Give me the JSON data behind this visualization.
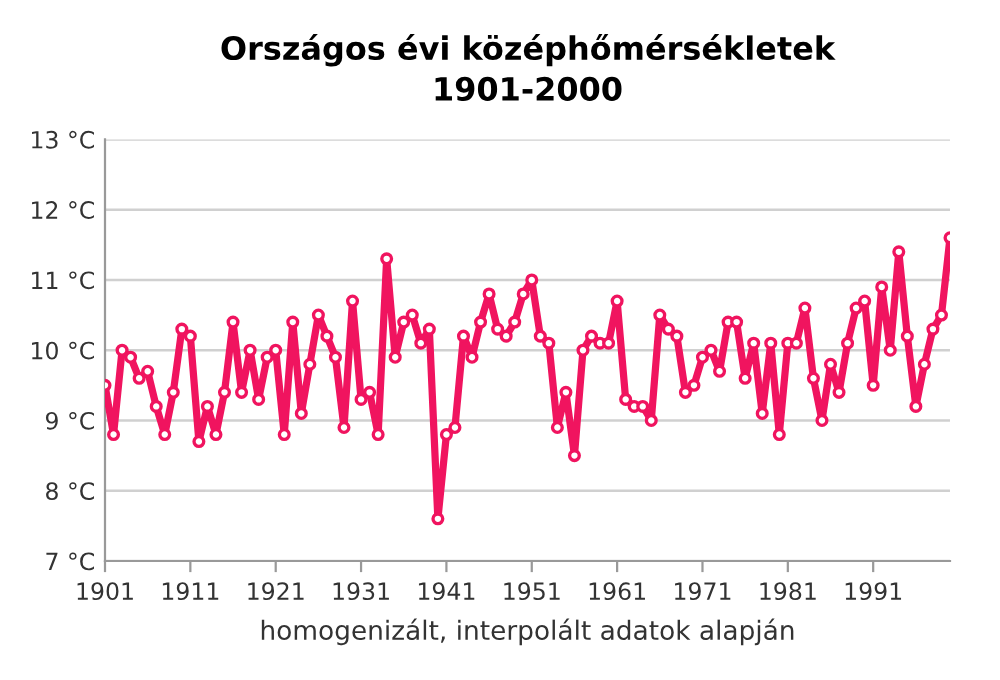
{
  "chart_data": {
    "type": "line",
    "title": "Országos évi középhőmérsékletek\n1901-2000",
    "xlabel": "homogenizált, interpolált adatok alapján",
    "x": [
      1901,
      1902,
      1903,
      1904,
      1905,
      1906,
      1907,
      1908,
      1909,
      1910,
      1911,
      1912,
      1913,
      1914,
      1915,
      1916,
      1917,
      1918,
      1919,
      1920,
      1921,
      1922,
      1923,
      1924,
      1925,
      1926,
      1927,
      1928,
      1929,
      1930,
      1931,
      1932,
      1933,
      1934,
      1935,
      1936,
      1937,
      1938,
      1939,
      1940,
      1941,
      1942,
      1943,
      1944,
      1945,
      1946,
      1947,
      1948,
      1949,
      1950,
      1951,
      1952,
      1953,
      1954,
      1955,
      1956,
      1957,
      1958,
      1959,
      1960,
      1961,
      1962,
      1963,
      1964,
      1965,
      1966,
      1967,
      1968,
      1969,
      1970,
      1971,
      1972,
      1973,
      1974,
      1975,
      1976,
      1977,
      1978,
      1979,
      1980,
      1981,
      1982,
      1983,
      1984,
      1985,
      1986,
      1987,
      1988,
      1989,
      1990,
      1991,
      1992,
      1993,
      1994,
      1995,
      1996,
      1997,
      1998,
      1999,
      2000
    ],
    "series": [
      {
        "color": "#f0145f",
        "values": [
          9.5,
          8.8,
          10.0,
          9.9,
          9.6,
          9.7,
          9.2,
          8.8,
          9.4,
          10.3,
          10.2,
          8.7,
          9.2,
          8.8,
          9.4,
          10.4,
          9.4,
          10.0,
          9.3,
          9.9,
          10.0,
          8.8,
          10.4,
          9.1,
          9.8,
          10.5,
          10.2,
          9.9,
          8.9,
          10.7,
          9.3,
          9.4,
          8.8,
          11.3,
          9.9,
          10.4,
          10.5,
          10.1,
          10.3,
          7.6,
          8.8,
          8.9,
          10.2,
          9.9,
          10.4,
          10.8,
          10.3,
          10.2,
          10.4,
          10.8,
          11.0,
          10.2,
          10.1,
          8.9,
          9.4,
          8.5,
          10.0,
          10.2,
          10.1,
          10.1,
          10.7,
          9.3,
          9.2,
          9.2,
          9.0,
          10.5,
          10.3,
          10.2,
          9.4,
          9.5,
          9.9,
          10.0,
          9.7,
          10.4,
          10.4,
          9.6,
          10.1,
          9.1,
          10.1,
          8.8,
          10.1,
          10.1,
          10.6,
          9.6,
          9.0,
          9.8,
          9.4,
          10.1,
          10.6,
          10.7,
          9.5,
          10.9,
          10.0,
          11.4,
          10.2,
          9.2,
          9.8,
          10.3,
          10.5,
          11.6
        ]
      }
    ],
    "xlim": [
      1901,
      2000
    ],
    "xticks": [
      1901,
      1911,
      1921,
      1931,
      1941,
      1951,
      1961,
      1971,
      1981,
      1991
    ],
    "ylim": [
      7,
      13
    ],
    "yticks": [
      {
        "value": 7,
        "label": "7 °C"
      },
      {
        "value": 8,
        "label": "8 °C"
      },
      {
        "value": 9,
        "label": "9 °C"
      },
      {
        "value": 10,
        "label": "10 °C"
      },
      {
        "value": 11,
        "label": "11 °C"
      },
      {
        "value": 12,
        "label": "12 °C"
      },
      {
        "value": 13,
        "label": "13 °C"
      }
    ],
    "grid": "y",
    "marker": "circle",
    "line_style": "solid",
    "legend": false
  }
}
